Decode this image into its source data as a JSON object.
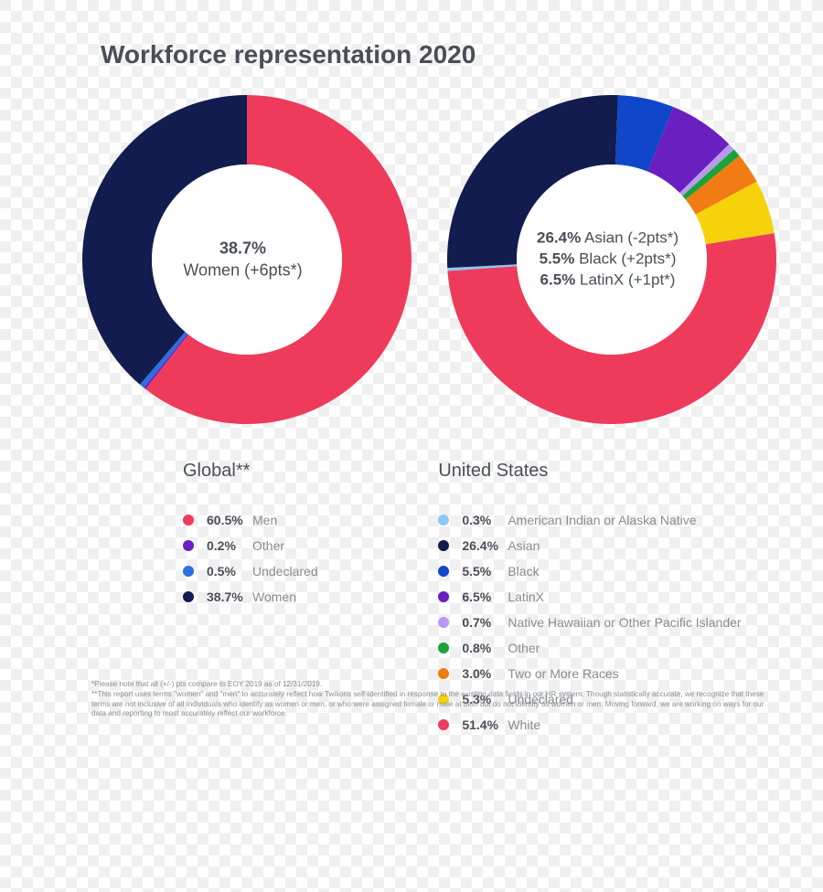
{
  "title": "Workforce representation 2020",
  "colors": {
    "text_main": "#4a4e57",
    "text_muted": "#888b92",
    "bg_checker_a": "#ffffff",
    "bg_checker_b": "#f0f0f0"
  },
  "donut_style": {
    "outer_radius": 180,
    "inner_radius": 104,
    "center_font_size": 18
  },
  "charts": {
    "global": {
      "title": "Global**",
      "center_lines": [
        {
          "pct": "38.7%",
          "rest": ""
        },
        {
          "pct": "",
          "rest": "Women (+6pts*)"
        }
      ],
      "slices": [
        {
          "label": "Men",
          "value": 60.5,
          "color": "#ef3b5b"
        },
        {
          "label": "Other",
          "value": 0.2,
          "color": "#6a1fc0"
        },
        {
          "label": "Undeclared",
          "value": 0.5,
          "color": "#2b6fe0"
        },
        {
          "label": "Women",
          "value": 38.7,
          "color": "#121c4e"
        }
      ],
      "start_angle_deg": 0
    },
    "us": {
      "title": "United States",
      "center_lines": [
        {
          "pct": "26.4%",
          "rest": " Asian (-2pts*)"
        },
        {
          "pct": "5.5%",
          "rest": " Black (+2pts*)"
        },
        {
          "pct": "6.5%",
          "rest": " LatinX (+1pt*)"
        }
      ],
      "slices": [
        {
          "label": "American Indian or Alaska Native",
          "value": 0.3,
          "color": "#8fc6f2"
        },
        {
          "label": "Asian",
          "value": 26.4,
          "color": "#121c4e"
        },
        {
          "label": "Black",
          "value": 5.5,
          "color": "#1046c9"
        },
        {
          "label": "LatinX",
          "value": 6.5,
          "color": "#6a1fc0"
        },
        {
          "label": "Native Hawaiian or Other Pacific Islander",
          "value": 0.7,
          "color": "#b79af0"
        },
        {
          "label": "Other",
          "value": 0.8,
          "color": "#1aa33a"
        },
        {
          "label": "Two or More Races",
          "value": 3.0,
          "color": "#f07c13"
        },
        {
          "label": "Undeclared",
          "value": 5.3,
          "color": "#f5d20a"
        },
        {
          "label": "White",
          "value": 51.4,
          "color": "#ef3b5b"
        }
      ],
      "start_angle_deg": -94
    }
  },
  "footnotes": [
    "*Please note that all (+/-) pts compare to EOY 2019 as of 12/31/2019.",
    "**This report uses terms \"women\" and \"men\" to accurately reflect how Twilions self-identified in response to the existing data fields in our HR system. Though statistically accurate, we recognize that these terms are not inclusive of all individuals who identify as women or men, or who were assigned female or male at birth but do not identify as women or men. Moving forward, we are working on ways for our data and reporting to most accurately reflect our workforce."
  ]
}
